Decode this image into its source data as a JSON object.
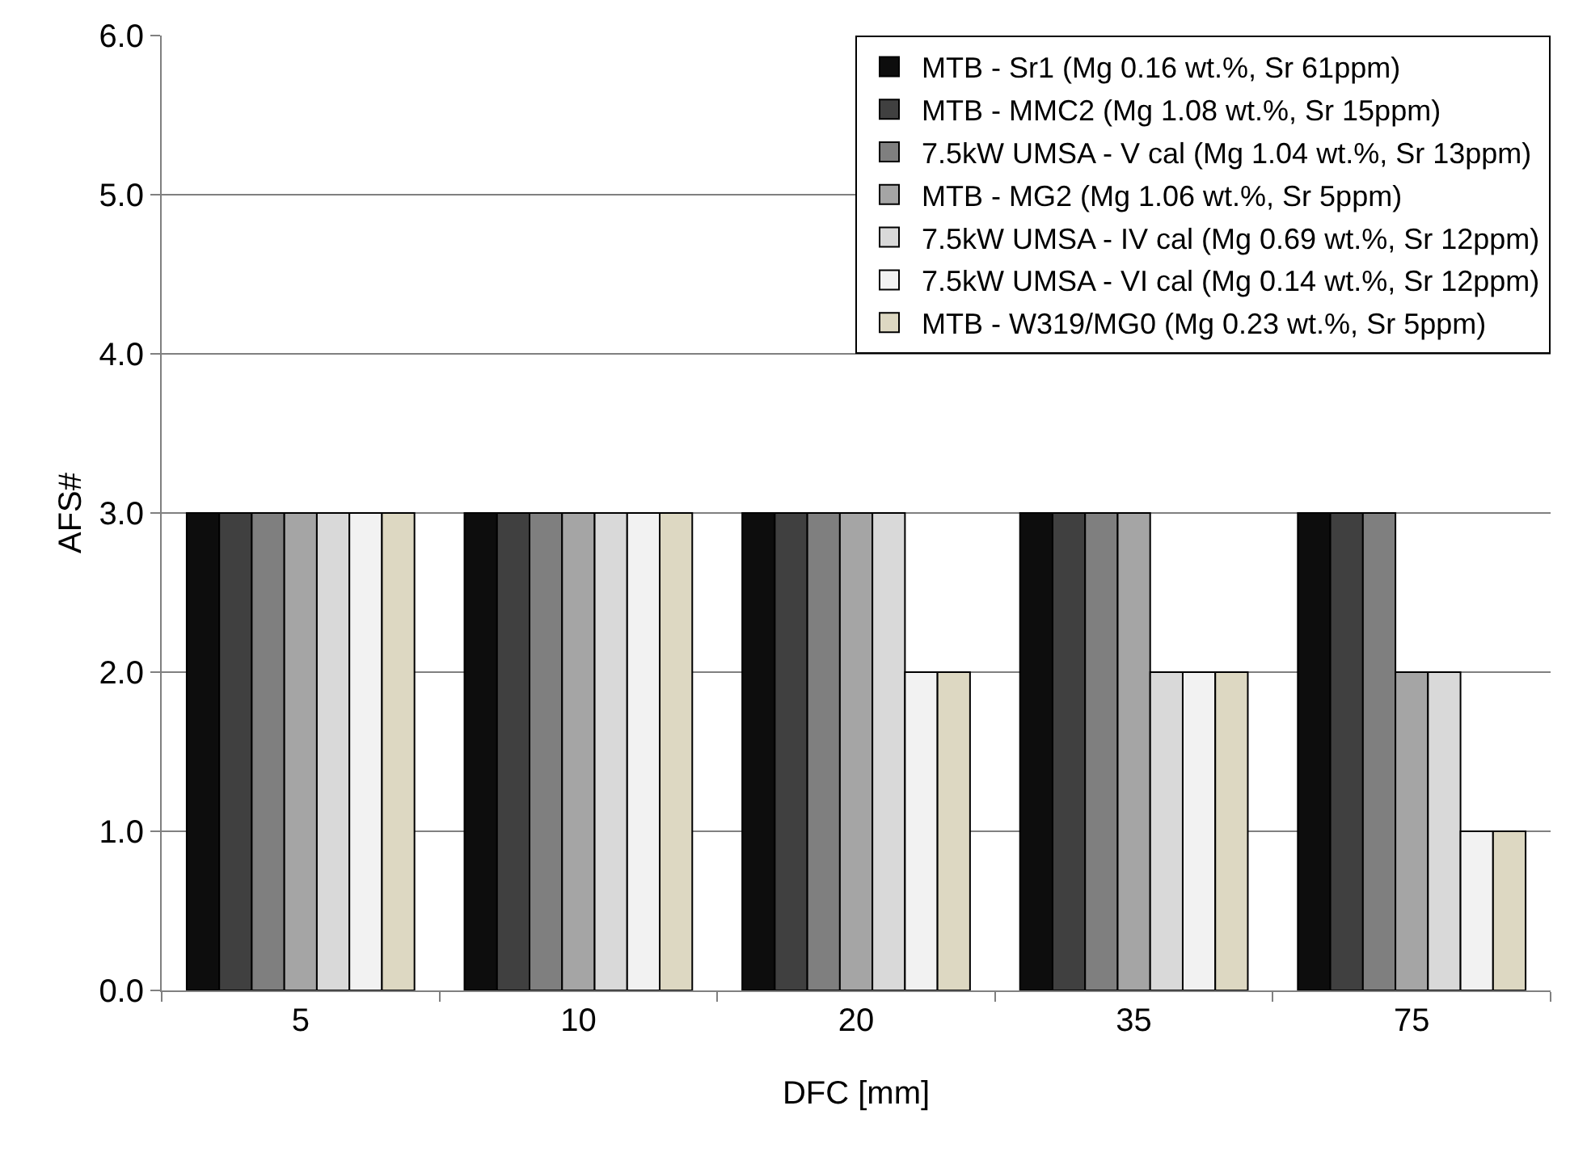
{
  "chart_data": {
    "type": "bar",
    "xlabel": "DFC [mm]",
    "ylabel": "AFS#",
    "categories": [
      "5",
      "10",
      "20",
      "35",
      "75"
    ],
    "series": [
      {
        "name": "MTB - Sr1 (Mg 0.16 wt.%, Sr 61ppm)",
        "color": "#0d0d0d",
        "values": [
          3,
          3,
          3,
          3,
          3
        ]
      },
      {
        "name": "MTB - MMC2 (Mg 1.08 wt.%, Sr 15ppm)",
        "color": "#404040",
        "values": [
          3,
          3,
          3,
          3,
          3
        ]
      },
      {
        "name": "7.5kW UMSA - V cal (Mg 1.04 wt.%, Sr 13ppm)",
        "color": "#7f7f7f",
        "values": [
          3,
          3,
          3,
          3,
          3
        ]
      },
      {
        "name": "MTB - MG2 (Mg 1.06 wt.%, Sr 5ppm)",
        "color": "#a5a5a5",
        "values": [
          3,
          3,
          3,
          3,
          2
        ]
      },
      {
        "name": "7.5kW UMSA - IV cal (Mg 0.69 wt.%, Sr 12ppm)",
        "color": "#d9d9d9",
        "values": [
          3,
          3,
          3,
          2,
          2
        ]
      },
      {
        "name": "7.5kW UMSA - VI cal (Mg 0.14 wt.%, Sr 12ppm)",
        "color": "#f2f2f2",
        "values": [
          3,
          3,
          2,
          2,
          1
        ]
      },
      {
        "name": "MTB - W319/MG0 (Mg 0.23 wt.%, Sr 5ppm)",
        "color": "#ddd8c2",
        "values": [
          3,
          3,
          2,
          2,
          1
        ]
      }
    ],
    "ylim": [
      0,
      6
    ],
    "yticks": [
      {
        "value": 0,
        "label": "0.0"
      },
      {
        "value": 1,
        "label": "1.0"
      },
      {
        "value": 2,
        "label": "2.0"
      },
      {
        "value": 3,
        "label": "3.0"
      },
      {
        "value": 4,
        "label": "4.0"
      },
      {
        "value": 5,
        "label": "5.0"
      },
      {
        "value": 6,
        "label": "6.0"
      }
    ],
    "grid": "y",
    "legend": "top right"
  }
}
